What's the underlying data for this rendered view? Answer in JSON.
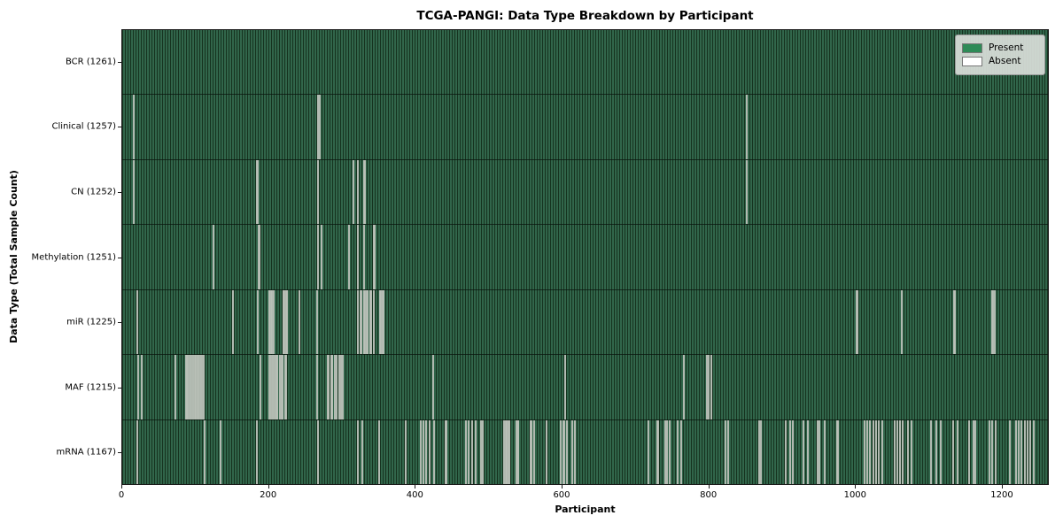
{
  "title": "TCGA-PANGI: Data Type Breakdown by Participant",
  "chart_data": {
    "type": "heatmap",
    "title": "TCGA-PANGI: Data Type Breakdown by Participant",
    "xlabel": "Participant",
    "ylabel": "Data Type (Total Sample Count)",
    "x_ticks": [
      0,
      200,
      400,
      600,
      800,
      1000,
      1200
    ],
    "x_max": 1264,
    "total_participants": 1261,
    "grid": false,
    "legend": {
      "position": "upper right",
      "entries": [
        {
          "label": "Present",
          "color": "#2e8b57"
        },
        {
          "label": "Absent",
          "color": "#ffffff"
        }
      ]
    },
    "colors": {
      "present_fill": "#2d6147",
      "present_edge": "#16331f",
      "absent_stripe": "#b9c0b7",
      "axis": "#1a1a1a",
      "legend_bg": "#dadeda"
    },
    "rows": [
      {
        "name": "BCR",
        "count": 1261,
        "label": "BCR (1261)",
        "absent": []
      },
      {
        "name": "Clinical",
        "count": 1257,
        "label": "Clinical (1257)",
        "absent": [
          15,
          266,
          268,
          852
        ]
      },
      {
        "name": "CN",
        "count": 1252,
        "label": "CN (1252)",
        "absent": [
          15,
          183,
          184,
          266,
          315,
          321,
          329,
          330,
          852
        ]
      },
      {
        "name": "Methylation",
        "count": 1251,
        "label": "Methylation (1251)",
        "absent": [
          123,
          185,
          186,
          266,
          271,
          308,
          320,
          329,
          342,
          343
        ]
      },
      {
        "name": "miR",
        "count": 1225,
        "label": "miR (1225)",
        "absent": [
          19,
          150,
          184,
          199,
          200,
          202,
          203,
          206,
          219,
          220,
          222,
          224,
          241,
          265,
          321,
          324,
          325,
          329,
          330,
          333,
          334,
          338,
          339,
          342,
          351,
          352,
          355,
          356,
          1002,
          1003,
          1063,
          1135,
          1136,
          1186,
          1188,
          1190
        ]
      },
      {
        "name": "MAF",
        "count": 1215,
        "label": "MAF (1215)",
        "absent": [
          20,
          25,
          71,
          86,
          87,
          88,
          91,
          93,
          96,
          98,
          99,
          101,
          103,
          105,
          108,
          110,
          187,
          200,
          202,
          204,
          207,
          209,
          210,
          211,
          214,
          216,
          218,
          221,
          223,
          265,
          279,
          281,
          284,
          285,
          286,
          289,
          291,
          295,
          297,
          300,
          423,
          603,
          766,
          797,
          799,
          803
        ]
      },
      {
        "name": "mRNA",
        "count": 1167,
        "label": "mRNA (1167)",
        "absent": [
          19,
          111,
          133,
          183,
          266,
          321,
          327,
          349,
          386,
          406,
          410,
          414,
          419,
          425,
          440,
          441,
          468,
          472,
          476,
          481,
          489,
          491,
          520,
          522,
          524,
          526,
          527,
          537,
          539,
          540,
          557,
          558,
          561,
          578,
          598,
          601,
          602,
          606,
          613,
          617,
          717,
          729,
          731,
          740,
          743,
          746,
          757,
          762,
          823,
          826,
          868,
          871,
          905,
          911,
          915,
          929,
          935,
          948,
          951,
          958,
          975,
          976,
          1012,
          1016,
          1020,
          1024,
          1028,
          1032,
          1036,
          1053,
          1057,
          1061,
          1065,
          1072,
          1077,
          1103,
          1110,
          1117,
          1133,
          1140,
          1155,
          1161,
          1164,
          1183,
          1187,
          1191,
          1211,
          1219,
          1223,
          1227,
          1231,
          1235,
          1239,
          1243
        ]
      }
    ]
  }
}
